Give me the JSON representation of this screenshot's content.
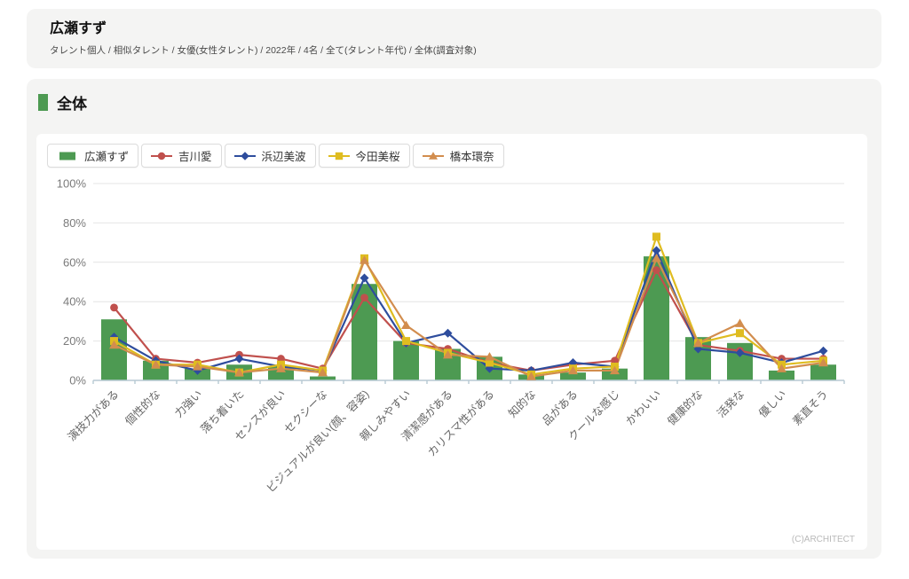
{
  "page": {
    "header": {
      "title": "広瀬すず",
      "breadcrumb": "タレント個人 / 相似タレント / 女優(女性タレント) / 2022年 / 4名 / 全て(タレント年代) / 全体(調査対象)"
    },
    "section": {
      "title": "全体"
    },
    "footer_credit": "(C)ARCHITECT"
  },
  "colors": {
    "card_background": "#f4f4f3",
    "panel_background": "#ffffff",
    "axis_line": "#b7c9d3",
    "gridline": "#e4e4e4",
    "y_tick_label": "#7a7a7a",
    "category_label": "#666666",
    "legend_border": "#dcdcdc"
  },
  "chart_data": {
    "type": "line",
    "subtype": "combo: first series rendered as bars, others as marker lines",
    "title": "全体",
    "unit": "%",
    "ylim": [
      0,
      100
    ],
    "yticks": [
      0,
      20,
      40,
      60,
      80,
      100
    ],
    "grid": true,
    "legend_position": "top-left",
    "categories": [
      "演技力がある",
      "個性的な",
      "力強い",
      "落ち着いた",
      "センスが良い",
      "セクシーな",
      "ビジュアルが良い(顔、容姿)",
      "親しみやすい",
      "清潔感がある",
      "カリスマ性がある",
      "知的な",
      "品がある",
      "クールな感じ",
      "かわいい",
      "健康的な",
      "活発な",
      "優しい",
      "素直そう"
    ],
    "series": [
      {
        "id": "hirose-suzu",
        "name": "広瀬すず",
        "kind": "bar",
        "marker": "bar",
        "color": "#4d9a52",
        "values": [
          31,
          10,
          6,
          8,
          7,
          2,
          49,
          20,
          16,
          12,
          3,
          4,
          6,
          63,
          22,
          19,
          5,
          8
        ]
      },
      {
        "id": "yoshikawa-ai",
        "name": "吉川愛",
        "kind": "line",
        "marker": "circle",
        "color": "#c0504d",
        "values": [
          37,
          11,
          9,
          13,
          11,
          6,
          42,
          19,
          16,
          9,
          5,
          8,
          10,
          56,
          18,
          15,
          11,
          11
        ]
      },
      {
        "id": "hamabe-minami",
        "name": "浜辺美波",
        "kind": "line",
        "marker": "diamond",
        "color": "#2e4d9d",
        "values": [
          22,
          10,
          5,
          11,
          7,
          5,
          52,
          19,
          24,
          6,
          5,
          9,
          7,
          66,
          16,
          14,
          9,
          15
        ]
      },
      {
        "id": "imada-mio",
        "name": "今田美桜",
        "kind": "line",
        "marker": "square",
        "color": "#dfbc20",
        "values": [
          20,
          8,
          8,
          4,
          8,
          5,
          62,
          20,
          14,
          9,
          3,
          6,
          7,
          73,
          19,
          24,
          8,
          10
        ]
      },
      {
        "id": "hashimoto-kanna",
        "name": "橋本環奈",
        "kind": "line",
        "marker": "triangle",
        "color": "#d28d4e",
        "values": [
          18,
          8,
          7,
          4,
          6,
          4,
          61,
          28,
          13,
          12,
          2,
          5,
          5,
          62,
          19,
          29,
          6,
          9
        ]
      }
    ]
  }
}
